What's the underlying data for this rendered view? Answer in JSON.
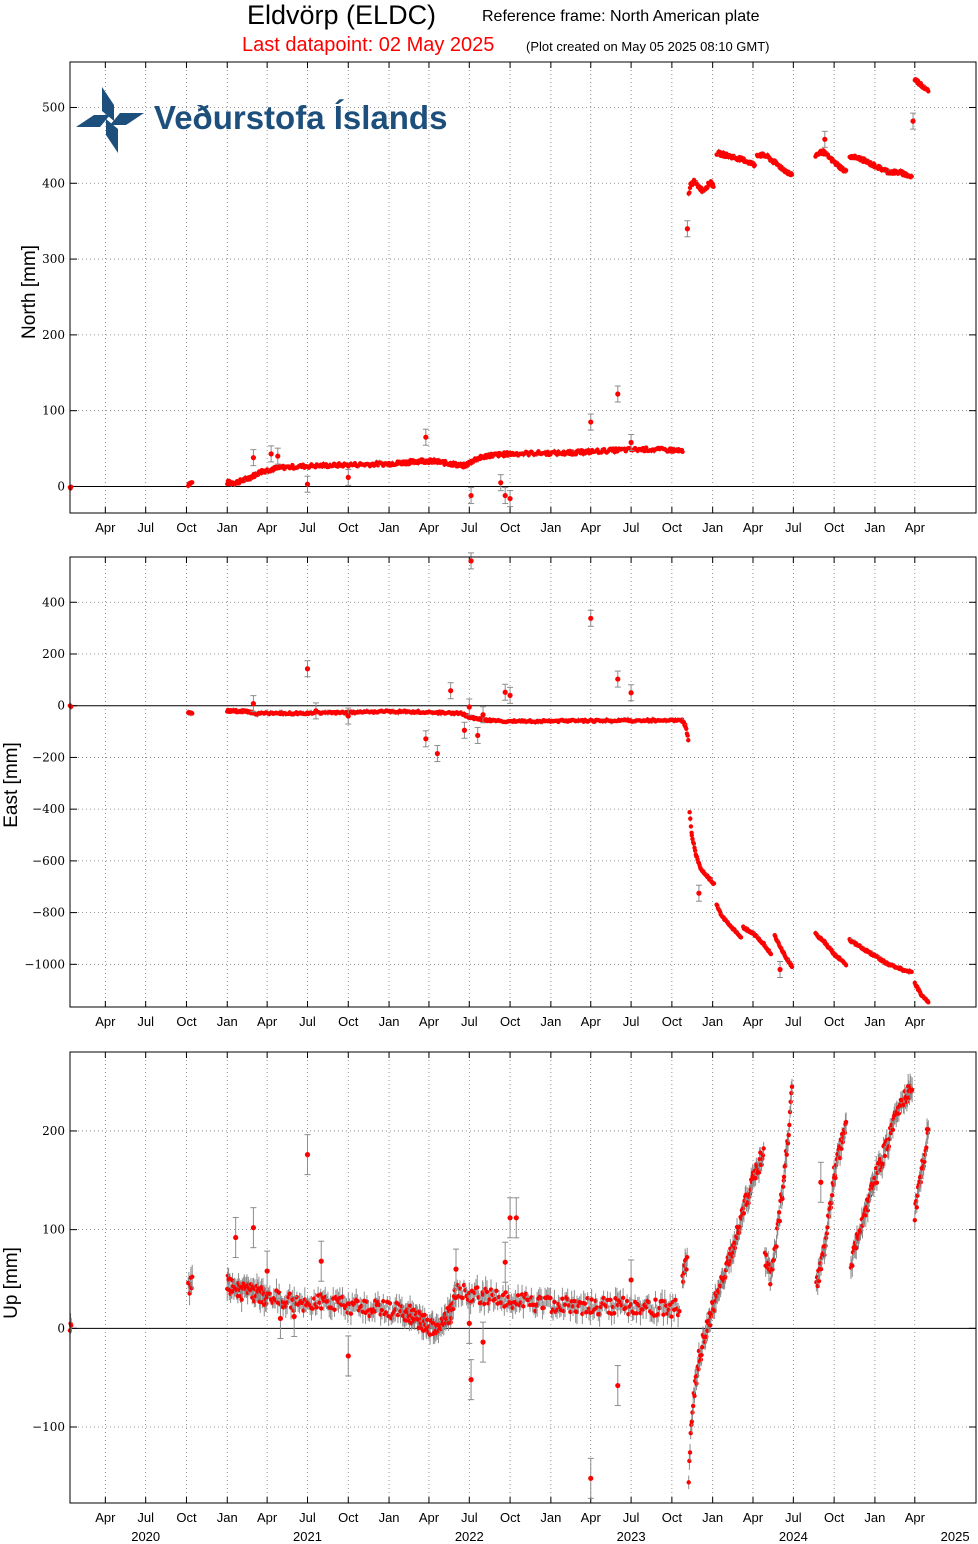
{
  "header": {
    "station_title": "Eldvörp (ELDC)",
    "reference_frame": "Reference frame: North American plate",
    "last_datapoint": "Last datapoint: 02 May 2025",
    "plot_created": "(Plot created on May 05 2025 08:10 GMT)"
  },
  "logo": {
    "text": "Veðurstofa Íslands",
    "icon": "vedurstofa-logo-icon"
  },
  "colors": {
    "points": "#ff0000",
    "errorbars": "#8c8c8c",
    "grid": "#777777",
    "title_red": "#ff0000",
    "logo": "#1d4f7c"
  },
  "time_axis": {
    "month_labels": [
      "Jan",
      "Apr",
      "Jul",
      "Oct"
    ],
    "start": "2020-01",
    "end": "2025-05",
    "year_labels": [
      "2020",
      "2021",
      "2022",
      "2023",
      "2024",
      "2025"
    ]
  },
  "chart_data": [
    {
      "type": "scatter",
      "id": "north",
      "ylabel": "North [mm]",
      "ylim": [
        -35,
        560
      ],
      "yticks": [
        0,
        100,
        200,
        300,
        400,
        500
      ],
      "grid": true,
      "errorbars": true,
      "zero_line": true,
      "segments": [
        {
          "x": [
            "2020-01-12",
            "2020-01-16"
          ],
          "y": [
            -1,
            0
          ]
        },
        {
          "x": [
            "2020-10-05",
            "2020-10-14"
          ],
          "y": [
            3,
            5
          ]
        },
        {
          "x": [
            "2021-01-01",
            "2021-01-20",
            "2021-02-15",
            "2021-03-20",
            "2021-05-01",
            "2021-07-01",
            "2021-09-01",
            "2021-11-01",
            "2022-01-01",
            "2022-02-15",
            "2022-03-15",
            "2022-04-15",
            "2022-05-20",
            "2022-06-20",
            "2022-07-15",
            "2022-08-15",
            "2022-10-01",
            "2022-12-01",
            "2023-02-01",
            "2023-04-01",
            "2023-06-01",
            "2023-08-01",
            "2023-10-01",
            "2023-10-25"
          ],
          "y": [
            5,
            5,
            10,
            20,
            25,
            27,
            28,
            29,
            30,
            32,
            34,
            33,
            30,
            27,
            36,
            41,
            43,
            44,
            44,
            46,
            48,
            49,
            48,
            46
          ]
        },
        {
          "x": [
            "2023-11-08",
            "2023-11-12",
            "2023-11-20",
            "2023-12-10",
            "2023-12-28",
            "2024-01-03"
          ],
          "y": [
            385,
            398,
            402,
            390,
            402,
            395
          ]
        },
        {
          "x": [
            "2024-01-10",
            "2024-02-01",
            "2024-03-15",
            "2024-04-05"
          ],
          "y": [
            440,
            437,
            430,
            424
          ]
        },
        {
          "x": [
            "2024-04-10",
            "2024-05-01",
            "2024-06-01",
            "2024-06-28"
          ],
          "y": [
            438,
            436,
            422,
            410
          ]
        },
        {
          "x": [
            "2024-08-20",
            "2024-09-05",
            "2024-10-01",
            "2024-10-28"
          ],
          "y": [
            437,
            442,
            428,
            415
          ]
        },
        {
          "x": [
            "2024-11-05",
            "2024-12-01",
            "2025-01-01",
            "2025-02-01",
            "2025-03-01",
            "2025-03-26"
          ],
          "y": [
            436,
            432,
            423,
            415,
            414,
            408
          ]
        },
        {
          "x": [
            "2025-04-01",
            "2025-04-15",
            "2025-05-02"
          ],
          "y": [
            537,
            530,
            523
          ]
        }
      ],
      "outliers": [
        {
          "x": "2021-03-01",
          "y": 38
        },
        {
          "x": "2021-04-10",
          "y": 43
        },
        {
          "x": "2021-04-25",
          "y": 40
        },
        {
          "x": "2021-07-01",
          "y": 3
        },
        {
          "x": "2021-10-01",
          "y": 12
        },
        {
          "x": "2022-03-25",
          "y": 65
        },
        {
          "x": "2022-07-05",
          "y": -12
        },
        {
          "x": "2022-09-10",
          "y": 5
        },
        {
          "x": "2022-09-20",
          "y": -12
        },
        {
          "x": "2022-10-01",
          "y": -16
        },
        {
          "x": "2023-04-01",
          "y": 85
        },
        {
          "x": "2023-06-01",
          "y": 122
        },
        {
          "x": "2023-07-01",
          "y": 58
        },
        {
          "x": "2023-11-05",
          "y": 340
        },
        {
          "x": "2024-09-10",
          "y": 458
        },
        {
          "x": "2025-03-28",
          "y": 482
        }
      ]
    },
    {
      "type": "scatter",
      "id": "east",
      "ylabel": "East [mm]",
      "ylim": [
        -1165,
        575
      ],
      "yticks": [
        -1000,
        -800,
        -600,
        -400,
        -200,
        0,
        200,
        400
      ],
      "ytick_labels": [
        "−1000",
        "−800",
        "−600",
        "−400",
        "−200",
        "0",
        "200",
        "400"
      ],
      "grid": true,
      "errorbars": true,
      "zero_line": true,
      "segments": [
        {
          "x": [
            "2020-01-12",
            "2020-01-16"
          ],
          "y": [
            0,
            0
          ]
        },
        {
          "x": [
            "2020-10-05",
            "2020-10-14"
          ],
          "y": [
            -27,
            -27
          ]
        },
        {
          "x": [
            "2021-01-01",
            "2021-02-15",
            "2021-03-01",
            "2021-05-01",
            "2021-08-01",
            "2021-10-01",
            "2022-01-01",
            "2022-04-01",
            "2022-06-15",
            "2022-07-01",
            "2022-08-01",
            "2022-09-01",
            "2022-12-01",
            "2023-04-01",
            "2023-08-01",
            "2023-10-25",
            "2023-11-01",
            "2023-11-08"
          ],
          "y": [
            -20,
            -22,
            -30,
            -30,
            -28,
            -25,
            -22,
            -25,
            -30,
            -45,
            -55,
            -60,
            -60,
            -58,
            -57,
            -57,
            -80,
            -140
          ]
        },
        {
          "x": [
            "2023-11-10",
            "2023-11-15",
            "2023-11-25",
            "2023-12-05",
            "2023-12-20",
            "2024-01-05"
          ],
          "y": [
            -410,
            -500,
            -580,
            -630,
            -660,
            -690
          ]
        },
        {
          "x": [
            "2024-01-10",
            "2024-01-20",
            "2024-02-05",
            "2024-02-25",
            "2024-03-05"
          ],
          "y": [
            -770,
            -810,
            -840,
            -880,
            -895
          ]
        },
        {
          "x": [
            "2024-03-10",
            "2024-04-01",
            "2024-04-25",
            "2024-05-12"
          ],
          "y": [
            -858,
            -880,
            -920,
            -960
          ]
        },
        {
          "x": [
            "2024-05-20",
            "2024-06-10",
            "2024-06-28"
          ],
          "y": [
            -890,
            -960,
            -1010
          ]
        },
        {
          "x": [
            "2024-08-20",
            "2024-09-10",
            "2024-10-01",
            "2024-10-28"
          ],
          "y": [
            -882,
            -915,
            -960,
            -1000
          ]
        },
        {
          "x": [
            "2024-11-05",
            "2024-12-15",
            "2025-02-01",
            "2025-03-01",
            "2025-03-26"
          ],
          "y": [
            -905,
            -950,
            -1000,
            -1018,
            -1030
          ]
        },
        {
          "x": [
            "2025-04-01",
            "2025-04-15",
            "2025-05-02"
          ],
          "y": [
            -1075,
            -1115,
            -1148
          ]
        }
      ],
      "outliers": [
        {
          "x": "2021-03-01",
          "y": 8
        },
        {
          "x": "2021-07-01",
          "y": 143
        },
        {
          "x": "2021-07-20",
          "y": -20
        },
        {
          "x": "2021-10-01",
          "y": -40
        },
        {
          "x": "2022-03-25",
          "y": -128
        },
        {
          "x": "2022-04-20",
          "y": -185
        },
        {
          "x": "2022-05-20",
          "y": 58
        },
        {
          "x": "2022-06-20",
          "y": -95
        },
        {
          "x": "2022-07-01",
          "y": -5
        },
        {
          "x": "2022-07-05",
          "y": 560
        },
        {
          "x": "2022-07-20",
          "y": -115
        },
        {
          "x": "2022-08-01",
          "y": -35
        },
        {
          "x": "2022-09-20",
          "y": 52
        },
        {
          "x": "2022-10-01",
          "y": 40
        },
        {
          "x": "2023-04-01",
          "y": 338
        },
        {
          "x": "2023-06-01",
          "y": 103
        },
        {
          "x": "2023-07-01",
          "y": 50
        },
        {
          "x": "2023-12-01",
          "y": -725
        },
        {
          "x": "2024-06-01",
          "y": -1020
        }
      ]
    },
    {
      "type": "scatter",
      "id": "up",
      "ylabel": "Up [mm]",
      "ylim": [
        -177,
        280
      ],
      "yticks": [
        -100,
        0,
        100,
        200
      ],
      "ytick_labels": [
        "−100",
        "0",
        "100",
        "200"
      ],
      "grid": true,
      "errorbars": true,
      "zero_line": true,
      "segments": [
        {
          "x": [
            "2020-01-12",
            "2020-01-16"
          ],
          "y": [
            -3,
            3
          ]
        },
        {
          "x": [
            "2020-10-05",
            "2020-10-14"
          ],
          "y": [
            38,
            48
          ]
        },
        {
          "x": [
            "2021-01-01",
            "2021-02-01",
            "2021-04-01",
            "2021-06-01",
            "2021-08-01",
            "2021-10-01",
            "2021-12-01",
            "2022-02-01",
            "2022-03-15",
            "2022-04-15",
            "2022-05-20",
            "2022-06-01",
            "2022-08-01",
            "2022-10-01",
            "2022-12-01",
            "2023-03-01",
            "2023-06-01",
            "2023-08-01",
            "2023-10-20"
          ],
          "y": [
            45,
            38,
            32,
            25,
            28,
            22,
            20,
            18,
            8,
            -2,
            15,
            38,
            33,
            30,
            25,
            22,
            24,
            22,
            20
          ]
        },
        {
          "x": [
            "2023-10-25",
            "2023-11-05"
          ],
          "y": [
            50,
            72
          ]
        },
        {
          "x": [
            "2023-11-08",
            "2023-11-15",
            "2023-12-01",
            "2024-01-01",
            "2024-02-01",
            "2024-03-01",
            "2024-04-01",
            "2024-04-25"
          ],
          "y": [
            -155,
            -90,
            -30,
            20,
            60,
            105,
            150,
            180
          ]
        },
        {
          "x": [
            "2024-04-28",
            "2024-05-12",
            "2024-06-10",
            "2024-06-28"
          ],
          "y": [
            75,
            50,
            150,
            238
          ]
        },
        {
          "x": [
            "2024-08-22",
            "2024-09-10",
            "2024-10-01",
            "2024-10-28"
          ],
          "y": [
            45,
            80,
            155,
            205
          ]
        },
        {
          "x": [
            "2024-11-08",
            "2024-11-25",
            "2025-01-01",
            "2025-02-15",
            "2025-03-26"
          ],
          "y": [
            62,
            95,
            150,
            210,
            248
          ]
        },
        {
          "x": [
            "2025-04-01",
            "2025-04-15",
            "2025-05-02"
          ],
          "y": [
            115,
            155,
            205
          ]
        }
      ],
      "outliers": [
        {
          "x": "2021-01-20",
          "y": 92
        },
        {
          "x": "2021-03-01",
          "y": 102
        },
        {
          "x": "2021-04-01",
          "y": 58
        },
        {
          "x": "2021-05-01",
          "y": 10
        },
        {
          "x": "2021-06-01",
          "y": 12
        },
        {
          "x": "2021-07-01",
          "y": 176
        },
        {
          "x": "2021-08-01",
          "y": 68
        },
        {
          "x": "2021-10-01",
          "y": -28
        },
        {
          "x": "2022-06-01",
          "y": 60
        },
        {
          "x": "2022-07-01",
          "y": 5
        },
        {
          "x": "2022-07-05",
          "y": -52
        },
        {
          "x": "2022-08-01",
          "y": -14
        },
        {
          "x": "2022-09-20",
          "y": 67
        },
        {
          "x": "2022-10-01",
          "y": 112
        },
        {
          "x": "2022-10-15",
          "y": 112
        },
        {
          "x": "2023-04-01",
          "y": -152
        },
        {
          "x": "2023-06-01",
          "y": -58
        },
        {
          "x": "2023-07-01",
          "y": 49
        },
        {
          "x": "2024-09-01",
          "y": 148
        }
      ]
    }
  ]
}
